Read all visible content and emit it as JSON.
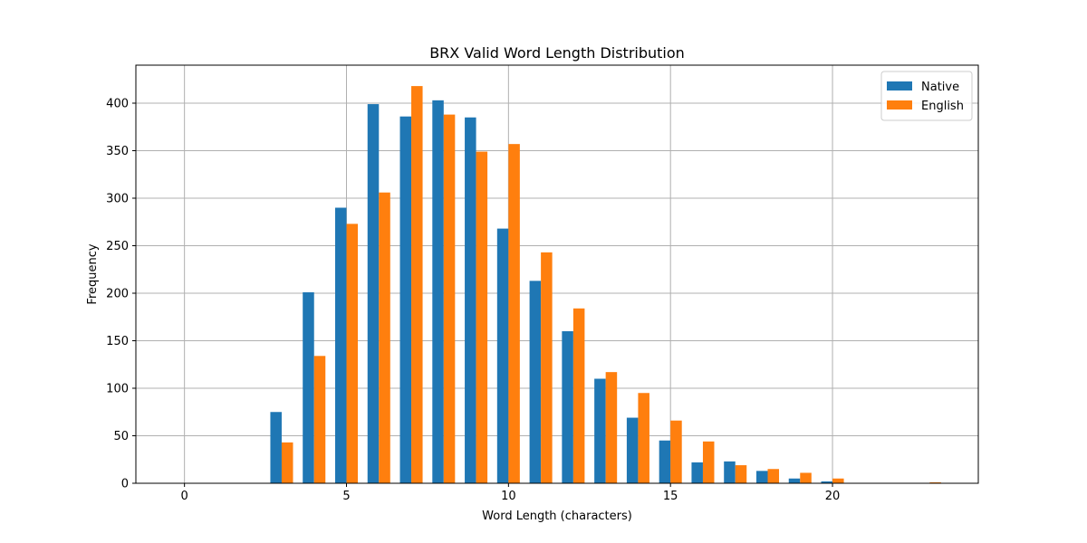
{
  "chart_data": {
    "type": "bar",
    "title": "BRX Valid Word Length Distribution",
    "xlabel": "Word Length (characters)",
    "ylabel": "Frequency",
    "xlim": [
      -1.5,
      24.5
    ],
    "ylim": [
      0,
      440
    ],
    "xticks": [
      0,
      5,
      10,
      15,
      20
    ],
    "yticks": [
      0,
      50,
      100,
      150,
      200,
      250,
      300,
      350,
      400
    ],
    "grid": true,
    "legend_position": "top-right",
    "categories": [
      1,
      2,
      3,
      4,
      5,
      6,
      7,
      8,
      9,
      10,
      11,
      12,
      13,
      14,
      15,
      16,
      17,
      18,
      19,
      20,
      21,
      22,
      23
    ],
    "series": [
      {
        "name": "Native",
        "color": "#1f77b4",
        "values": [
          0,
          0,
          75,
          201,
          290,
          399,
          386,
          403,
          385,
          268,
          213,
          160,
          110,
          69,
          45,
          22,
          23,
          13,
          5,
          2,
          0,
          0,
          0
        ]
      },
      {
        "name": "English",
        "color": "#ff7f0e",
        "values": [
          0,
          0,
          43,
          134,
          273,
          306,
          418,
          388,
          349,
          357,
          243,
          184,
          117,
          95,
          66,
          44,
          19,
          15,
          11,
          5,
          0,
          0,
          1
        ]
      }
    ]
  }
}
